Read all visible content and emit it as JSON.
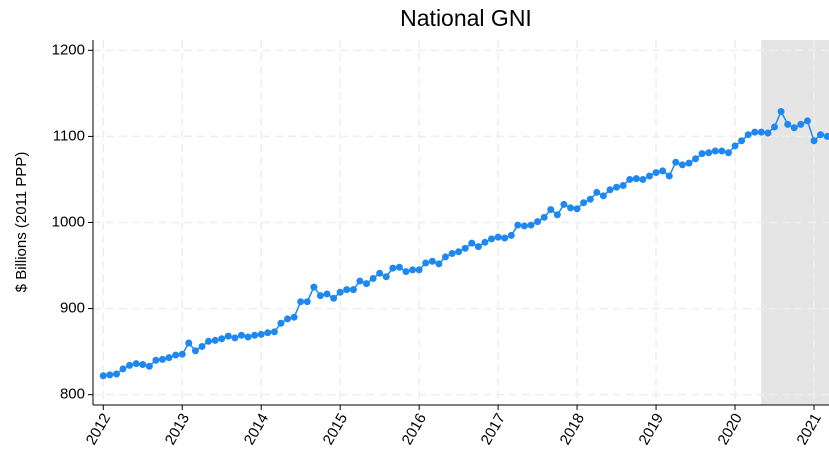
{
  "chart_data": {
    "type": "line",
    "title": "National GNI",
    "ylabel": "$ Billions (2011 PPP)",
    "x": [
      2012,
      2012.083,
      2012.167,
      2012.25,
      2012.333,
      2012.417,
      2012.5,
      2012.583,
      2012.667,
      2012.75,
      2012.833,
      2012.917,
      2013,
      2013.083,
      2013.167,
      2013.25,
      2013.333,
      2013.417,
      2013.5,
      2013.583,
      2013.667,
      2013.75,
      2013.833,
      2013.917,
      2014,
      2014.083,
      2014.167,
      2014.25,
      2014.333,
      2014.417,
      2014.5,
      2014.583,
      2014.667,
      2014.75,
      2014.833,
      2014.917,
      2015,
      2015.083,
      2015.167,
      2015.25,
      2015.333,
      2015.417,
      2015.5,
      2015.583,
      2015.667,
      2015.75,
      2015.833,
      2015.917,
      2016,
      2016.083,
      2016.167,
      2016.25,
      2016.333,
      2016.417,
      2016.5,
      2016.583,
      2016.667,
      2016.75,
      2016.833,
      2016.917,
      2017,
      2017.083,
      2017.167,
      2017.25,
      2017.333,
      2017.417,
      2017.5,
      2017.583,
      2017.667,
      2017.75,
      2017.833,
      2017.917,
      2018,
      2018.083,
      2018.167,
      2018.25,
      2018.333,
      2018.417,
      2018.5,
      2018.583,
      2018.667,
      2018.75,
      2018.833,
      2018.917,
      2019,
      2019.083,
      2019.167,
      2019.25,
      2019.333,
      2019.417,
      2019.5,
      2019.583,
      2019.667,
      2019.75,
      2019.833,
      2019.917,
      2020,
      2020.083,
      2020.167,
      2020.25,
      2020.333,
      2020.417,
      2020.5,
      2020.583,
      2020.667,
      2020.75,
      2020.833,
      2020.917,
      2021,
      2021.083,
      2021.167
    ],
    "series": [
      {
        "name": "National GNI",
        "color": "#1e88f0",
        "values": [
          822,
          823,
          824,
          830,
          834,
          836,
          835,
          833,
          840,
          841,
          843,
          846,
          847,
          860,
          851,
          856,
          862,
          863,
          865,
          868,
          866,
          869,
          867,
          869,
          870,
          872,
          873,
          883,
          888,
          890,
          908,
          908,
          925,
          915,
          917,
          912,
          919,
          922,
          922,
          932,
          929,
          935,
          941,
          937,
          947,
          948,
          943,
          945,
          945,
          953,
          955,
          952,
          960,
          964,
          966,
          970,
          976,
          972,
          977,
          981,
          983,
          982,
          985,
          997,
          996,
          997,
          1001,
          1006,
          1015,
          1009,
          1021,
          1017,
          1016,
          1023,
          1027,
          1035,
          1031,
          1038,
          1041,
          1043,
          1050,
          1051,
          1050,
          1054,
          1058,
          1060,
          1054,
          1070,
          1067,
          1069,
          1074,
          1080,
          1081,
          1083,
          1083,
          1081,
          1089,
          1095,
          1102,
          1105,
          1105,
          1104,
          1111,
          1129,
          1114,
          1110,
          1114,
          1118,
          1095,
          1102,
          1100
        ]
      }
    ],
    "xlim": [
      2011.87,
      2021.19
    ],
    "xticks": [
      2012,
      2013,
      2014,
      2015,
      2016,
      2017,
      2018,
      2019,
      2020,
      2021
    ],
    "ylim": [
      788,
      1212
    ],
    "yticks": [
      800,
      900,
      1000,
      1100,
      1200
    ],
    "shaded_x": [
      2020.33,
      2021.19
    ],
    "shade_color": "#e5e5e5",
    "grid": true
  }
}
